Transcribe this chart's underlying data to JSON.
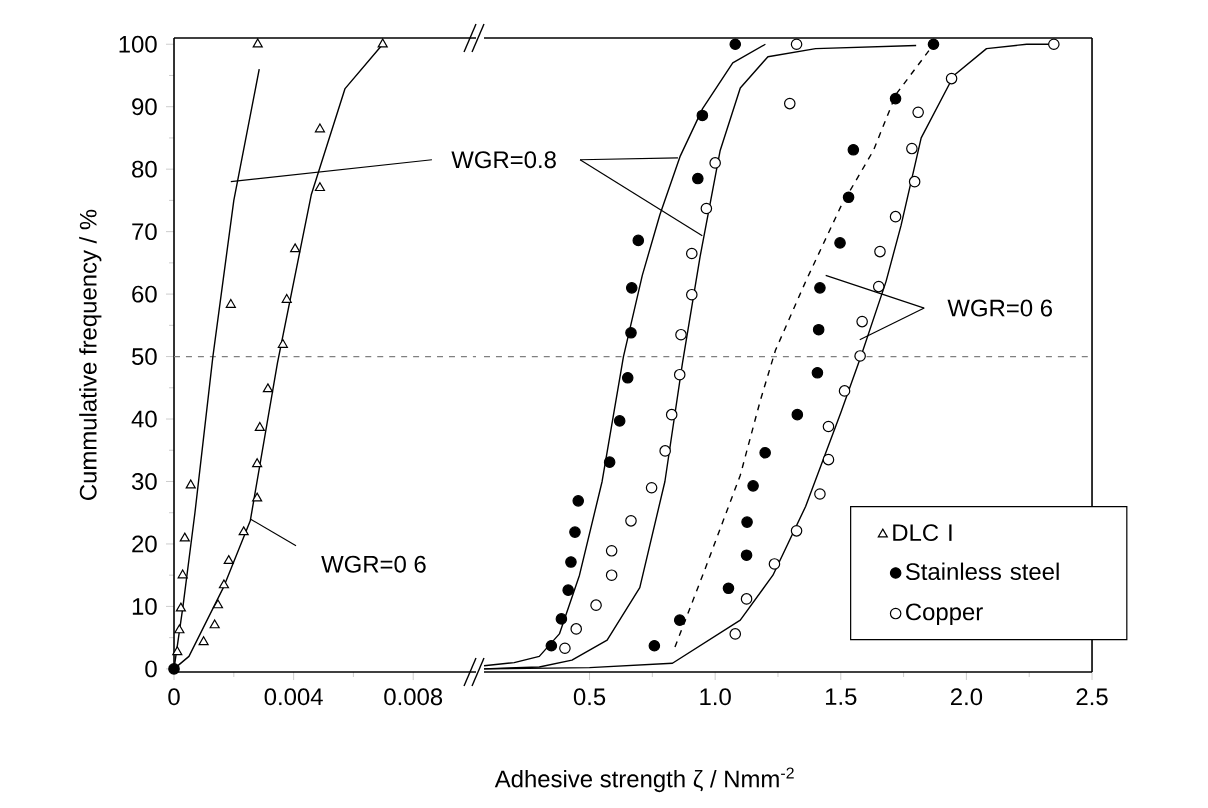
{
  "chart_data": [
    {
      "type": "scatter",
      "ylabel": "Cummulative frequency / %",
      "xlabel": "Adhesive strength ζ / Nmm$^{-2}$",
      "xlim": [
        0,
        0.0101
      ],
      "xticks": [
        0,
        0.004,
        0.008
      ],
      "ylim": [
        -0.5,
        101
      ],
      "yticks": [
        0,
        10,
        20,
        30,
        40,
        50,
        60,
        70,
        80,
        90,
        100
      ],
      "ref_lines": [
        {
          "axis": "y",
          "value": 50,
          "color": "#808080",
          "line_style": "dashed"
        }
      ],
      "annotations": [
        {
          "text": "WGR=0.8",
          "x": 0.0019,
          "y": 78
        },
        {
          "text": "WGR=0 6",
          "x": 0.00255,
          "y": 24
        }
      ],
      "series": [
        {
          "name": "DLC I",
          "marker": "triangle",
          "color": "#ffffff",
          "x": [
            0.00011,
            0.00018,
            0.00023,
            0.00029,
            0.00036,
            0.00056,
            0.0019,
            0.0028,
            0.00099,
            0.00136,
            0.00147,
            0.00167,
            0.00183,
            0.00233,
            0.00278,
            0.00278,
            0.00287,
            0.00314,
            0.00364,
            0.00377,
            0.00405,
            0.00488,
            0.00488,
            0.00698
          ],
          "values": [
            2.7,
            6.2,
            9.7,
            15,
            20.9,
            29.4,
            58.3,
            100,
            4.3,
            7,
            10.2,
            13.4,
            17.3,
            21.9,
            27.3,
            32.8,
            38.6,
            44.8,
            51.9,
            59.1,
            67.2,
            77,
            86.4,
            100
          ]
        },
        {
          "marker": "circle",
          "color": "#000000",
          "x": [
            0
          ],
          "values": [
            0
          ]
        },
        {
          "type": "line",
          "color": "#000000",
          "line_style": "solid",
          "x": [
            0,
            0.0003,
            0.0007,
            0.0013,
            0.002,
            0.00285
          ],
          "values": [
            0,
            10,
            25,
            50,
            75,
            96
          ]
        },
        {
          "type": "line",
          "color": "#000000",
          "line_style": "solid",
          "x": [
            0,
            0.0005,
            0.00165,
            0.00255,
            0.00346,
            0.00459,
            0.00572,
            0.00698
          ],
          "values": [
            0,
            2,
            13,
            23.7,
            49,
            75.9,
            92.9,
            100
          ]
        }
      ]
    },
    {
      "type": "scatter",
      "xlim": [
        0.08,
        2.5
      ],
      "xticks": [
        0.5,
        {
          "value": 1,
          "label": "1.0"
        },
        1.5,
        {
          "value": 2,
          "label": "2.0"
        },
        2.5
      ],
      "ylim": [
        -0.5,
        101
      ],
      "tick_labels": "x",
      "legend": "bottom right",
      "ref_lines": [
        {
          "axis": "y",
          "value": 50,
          "color": "#808080",
          "line_style": "dashed"
        }
      ],
      "annotations": [
        {
          "text": "WGR=0 6",
          "x": 1.44,
          "y": 63
        }
      ],
      "series": [
        {
          "name": "Stainless steel",
          "marker": "circle",
          "color": "#000000",
          "x": [
            0.348,
            0.388,
            0.415,
            0.426,
            0.442,
            0.455,
            0.58,
            0.62,
            0.652,
            0.665,
            0.668,
            0.694,
            0.931,
            0.949,
            1.08,
            0.758,
            0.859,
            1.053,
            1.125,
            1.127,
            1.151,
            1.199,
            1.327,
            1.407,
            1.412,
            1.417,
            1.497,
            1.531,
            1.55,
            1.718,
            1.869
          ],
          "values": [
            3.7,
            8,
            12.6,
            17.1,
            21.9,
            26.9,
            33.1,
            39.7,
            46.6,
            53.8,
            61,
            68.6,
            78.5,
            88.6,
            100,
            3.7,
            7.8,
            12.9,
            18.2,
            23.5,
            29.3,
            34.6,
            40.7,
            47.4,
            54.3,
            61,
            68.2,
            75.5,
            83.1,
            91.3,
            100
          ]
        },
        {
          "name": "Copper",
          "marker": "circle",
          "color": "#ffffff",
          "x": [
            0.402,
            0.447,
            0.526,
            0.588,
            0.588,
            0.665,
            0.747,
            0.801,
            0.827,
            0.859,
            0.864,
            0.907,
            0.907,
            0.965,
            1.0,
            1.297,
            1.324,
            1.08,
            1.125,
            1.236,
            1.324,
            1.417,
            1.451,
            1.451,
            1.515,
            1.577,
            1.585,
            1.651,
            1.656,
            1.718,
            1.794,
            1.783,
            1.808,
            1.941,
            2.348
          ],
          "values": [
            3.3,
            6.4,
            10.2,
            15,
            18.9,
            23.7,
            29,
            34.9,
            40.7,
            47.1,
            53.5,
            59.9,
            66.5,
            73.7,
            81,
            90.5,
            100,
            5.6,
            11.2,
            16.8,
            22.1,
            28,
            33.5,
            38.8,
            44.5,
            50.1,
            55.6,
            61.2,
            66.8,
            72.4,
            78,
            83.3,
            89.1,
            94.5,
            100
          ]
        },
        {
          "type": "line",
          "color": "#000000",
          "line_style": "solid",
          "x": [
            0.08,
            0.2,
            0.3,
            0.38,
            0.46,
            0.55,
            0.635,
            0.71,
            0.78,
            0.86,
            0.95,
            1.07,
            1.2
          ],
          "values": [
            0.5,
            1,
            2,
            5.6,
            15,
            30,
            50,
            63,
            72.7,
            82,
            89.7,
            97,
            100
          ]
        },
        {
          "type": "line",
          "color": "#000000",
          "line_style": "solid",
          "x": [
            0.08,
            0.3,
            0.43,
            0.57,
            0.7,
            0.8,
            0.87,
            0.94,
            1.02,
            1.1,
            1.21,
            1.4,
            1.8
          ],
          "values": [
            0,
            0.3,
            1.4,
            4.6,
            13,
            30,
            49,
            66,
            83,
            93,
            98,
            99.3,
            99.8
          ]
        },
        {
          "type": "line",
          "color": "#000000",
          "line_style": "dashed",
          "x": [
            0.84,
            0.96,
            1.1,
            1.18,
            1.24,
            1.36,
            1.5,
            1.63,
            1.72,
            1.87
          ],
          "values": [
            3.5,
            16,
            31,
            43,
            51,
            62,
            74,
            83,
            92,
            100
          ]
        },
        {
          "type": "line",
          "color": "#000000",
          "line_style": "solid",
          "x": [
            0.08,
            0.5,
            0.83,
            1.1,
            1.23,
            1.36,
            1.5,
            1.58,
            1.68,
            1.74,
            1.82,
            1.95,
            2.08,
            2.24,
            2.35
          ],
          "values": [
            0,
            0.2,
            0.9,
            7.8,
            15,
            26,
            41,
            50,
            62,
            71,
            85,
            95,
            99.3,
            100,
            100
          ]
        }
      ]
    }
  ]
}
